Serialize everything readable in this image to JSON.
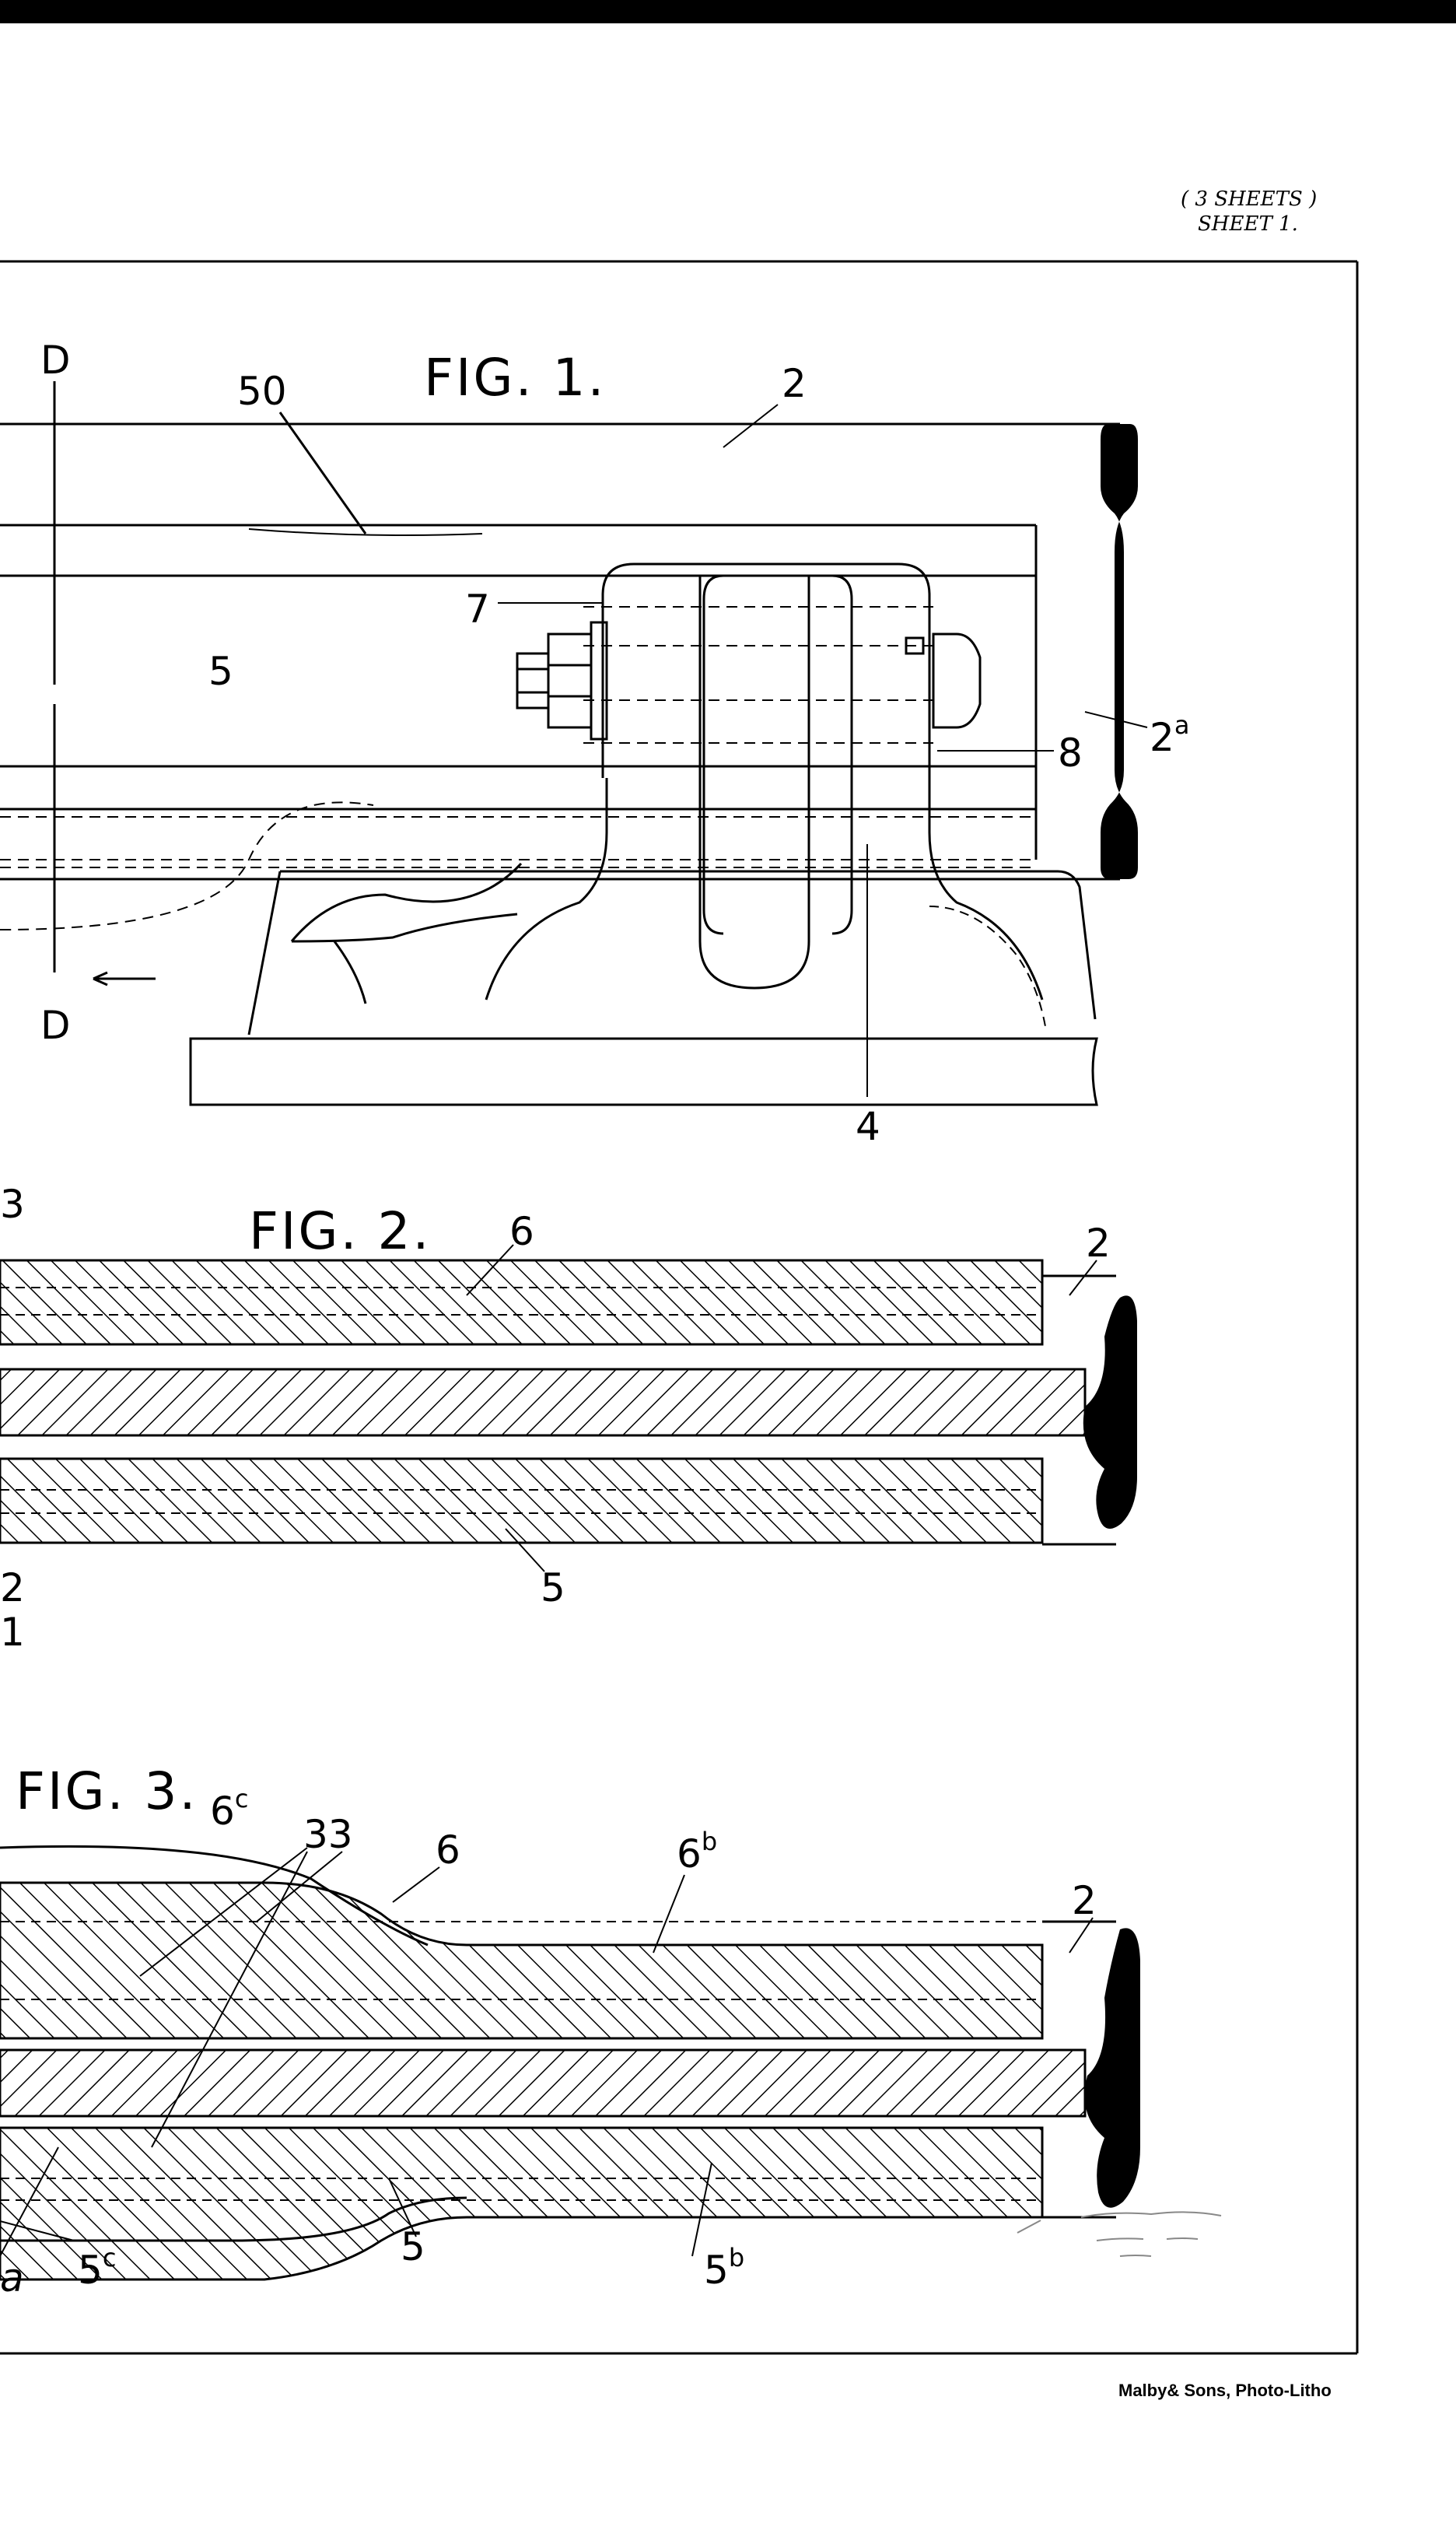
{
  "header": {
    "sheets_line": "( 3 SHEETS )",
    "sheet_line": "SHEET 1."
  },
  "fig1": {
    "title": "FIG. 1.",
    "labels": {
      "d_top": "D",
      "d_bottom": "D",
      "n50": "50",
      "n2": "2",
      "n5": "5",
      "n7": "7",
      "n8": "8",
      "n2a_base": "2",
      "n2a_sup": "a",
      "n4": "4"
    }
  },
  "fig2": {
    "title": "FIG. 2.",
    "labels": {
      "n6": "6",
      "n2": "2",
      "n5": "5",
      "edge3": "3",
      "edge2": "2",
      "edge1": "1"
    }
  },
  "fig3": {
    "title": "FIG. 3.",
    "labels": {
      "n6c_base": "6",
      "n6c_sup": "c",
      "n33": "33",
      "n6": "6",
      "n6b_base": "6",
      "n6b_sup": "b",
      "n2": "2",
      "n5": "5",
      "n5b_base": "5",
      "n5b_sup": "b",
      "n5c_base": "5",
      "n5c_sup": "c",
      "edge_a": "a"
    }
  },
  "footer": {
    "credit": "Malby& Sons, Photo-Litho"
  },
  "colors": {
    "ink": "#000000",
    "paper": "#ffffff"
  }
}
